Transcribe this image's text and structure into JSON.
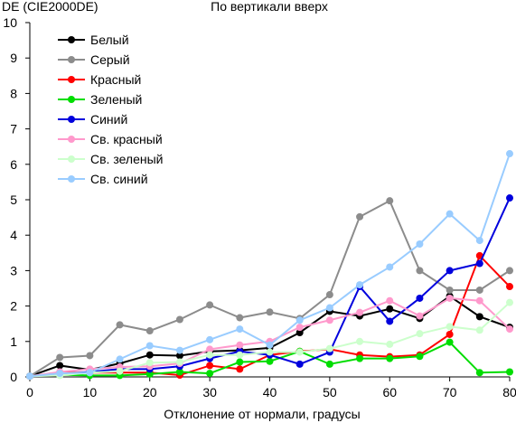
{
  "chart_data": {
    "type": "line",
    "title": "По вертикали вверх",
    "ylabel": "DE (CIE2000DE)",
    "xlabel": "Отклонение от нормали, градусы",
    "x": [
      0,
      5,
      10,
      15,
      20,
      25,
      30,
      35,
      40,
      45,
      50,
      55,
      60,
      65,
      70,
      75,
      80
    ],
    "xlim": [
      0,
      80
    ],
    "ylim": [
      0,
      10
    ],
    "xticks": [
      "0",
      "10",
      "20",
      "30",
      "40",
      "50",
      "60",
      "70",
      "80"
    ],
    "yticks": [
      "0",
      "1",
      "2",
      "3",
      "4",
      "5",
      "6",
      "7",
      "8",
      "9",
      "10"
    ],
    "grid": false,
    "legend_position": "top-left",
    "series": [
      {
        "name": "Белый",
        "color": "#000000",
        "values": [
          0.02,
          0.32,
          0.2,
          0.38,
          0.62,
          0.6,
          0.72,
          0.75,
          0.82,
          1.25,
          1.85,
          1.72,
          1.92,
          1.65,
          2.28,
          1.7,
          1.4
        ]
      },
      {
        "name": "Серый",
        "color": "#8c8c8c",
        "values": [
          0.02,
          0.55,
          0.6,
          1.47,
          1.3,
          1.62,
          2.03,
          1.67,
          1.83,
          1.65,
          2.32,
          4.52,
          4.97,
          3.0,
          2.45,
          2.45,
          3.0
        ]
      },
      {
        "name": "Красный",
        "color": "#ff0000",
        "values": [
          0.02,
          0.12,
          0.12,
          0.12,
          0.12,
          0.05,
          0.32,
          0.22,
          0.62,
          0.72,
          0.78,
          0.62,
          0.57,
          0.62,
          1.2,
          3.42,
          2.55
        ]
      },
      {
        "name": "Зеленый",
        "color": "#00dd00",
        "values": [
          0.02,
          0.06,
          0.04,
          0.04,
          0.08,
          0.14,
          0.1,
          0.42,
          0.44,
          0.72,
          0.36,
          0.52,
          0.52,
          0.58,
          0.98,
          0.12,
          0.14
        ]
      },
      {
        "name": "Синий",
        "color": "#0000dd",
        "values": [
          0.02,
          0.08,
          0.14,
          0.22,
          0.22,
          0.3,
          0.52,
          0.72,
          0.62,
          0.36,
          0.7,
          2.55,
          1.57,
          2.22,
          3.0,
          3.2,
          5.05
        ]
      },
      {
        "name": "Св. красный",
        "color": "#ff99cc",
        "values": [
          0.02,
          0.14,
          0.22,
          0.28,
          0.3,
          0.38,
          0.78,
          0.9,
          1.0,
          1.4,
          1.6,
          1.82,
          2.15,
          1.72,
          2.22,
          2.15,
          1.35
        ]
      },
      {
        "name": "Св. зеленый",
        "color": "#ccffcc",
        "values": [
          0.02,
          0.04,
          0.12,
          0.16,
          0.4,
          0.42,
          0.62,
          0.62,
          0.7,
          0.7,
          0.8,
          1.0,
          0.92,
          1.22,
          1.42,
          1.32,
          2.1
        ]
      },
      {
        "name": "Св. синий",
        "color": "#99ccff",
        "values": [
          0.02,
          0.1,
          0.12,
          0.5,
          0.88,
          0.75,
          1.05,
          1.35,
          0.9,
          1.6,
          1.95,
          2.6,
          3.1,
          3.75,
          4.6,
          3.85,
          6.3
        ]
      }
    ]
  }
}
